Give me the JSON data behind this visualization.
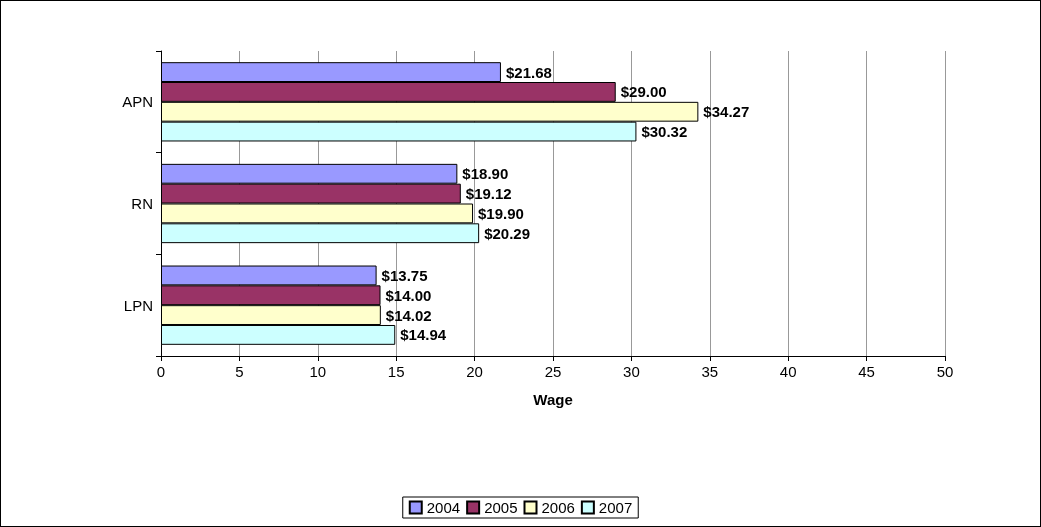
{
  "chart_data": {
    "type": "bar",
    "orientation": "horizontal",
    "xlabel": "Wage",
    "categories": [
      "APN",
      "RN",
      "LPN"
    ],
    "series": [
      {
        "name": "2004",
        "color": "#9999ff",
        "values": [
          21.68,
          18.9,
          13.75
        ],
        "value_labels": [
          "$21.68",
          "$18.90",
          "$13.75"
        ]
      },
      {
        "name": "2005",
        "color": "#993366",
        "values": [
          29.0,
          19.12,
          14.0
        ],
        "value_labels": [
          "$29.00",
          "$19.12",
          "$14.00"
        ]
      },
      {
        "name": "2006",
        "color": "#ffffcc",
        "values": [
          34.27,
          19.9,
          14.02
        ],
        "value_labels": [
          "$34.27",
          "$19.90",
          "$14.02"
        ]
      },
      {
        "name": "2007",
        "color": "#ccffff",
        "values": [
          30.32,
          20.29,
          14.94
        ],
        "value_labels": [
          "$30.32",
          "$20.29",
          "$14.94"
        ]
      }
    ],
    "xlim": [
      0,
      50
    ],
    "xticks": [
      0,
      5,
      10,
      15,
      20,
      25,
      30,
      35,
      40,
      45,
      50
    ],
    "grid": "x",
    "legend": "bottom"
  }
}
